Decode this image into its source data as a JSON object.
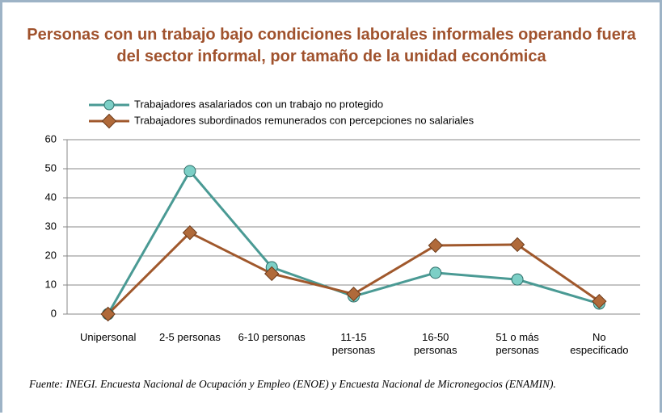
{
  "chart_data": {
    "type": "line",
    "title": "Personas con un trabajo bajo condiciones laborales informales operando fuera del sector informal, por tamaño de la unidad económica",
    "categories": [
      "Unipersonal",
      "2-5 personas",
      "6-10 personas",
      "11-15\npersonas",
      "16-50\npersonas",
      "51 o más\npersonas",
      "No\nespecificado"
    ],
    "series": [
      {
        "name": "Trabajadores asalariados con un trabajo no protegido",
        "color": "#4a9a94",
        "values": [
          0,
          49.2,
          16.1,
          6.1,
          14.2,
          11.9,
          3.6
        ]
      },
      {
        "name": "Trabajadores subordinados remunerados con percepciones no salariales",
        "color": "#a0582c",
        "values": [
          0,
          28,
          13.9,
          6.9,
          23.6,
          23.9,
          4.4
        ]
      }
    ],
    "ylim": [
      0,
      60
    ],
    "yticks": [
      0,
      10,
      20,
      30,
      40,
      50,
      60
    ],
    "grid": true,
    "source": "Fuente: INEGI. Encuesta Nacional de Ocupación y Empleo (ENOE) y Encuesta Nacional de Micronegocios (ENAMIN)."
  }
}
